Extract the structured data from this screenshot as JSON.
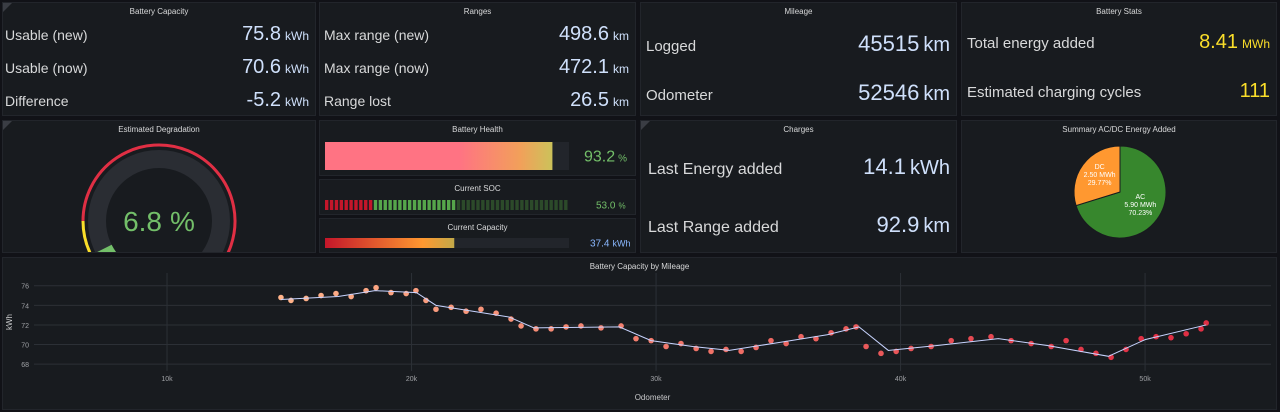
{
  "panels": {
    "battery_capacity": {
      "title": "Battery Capacity",
      "rows": [
        {
          "label": "Usable (new)",
          "value": 75.8,
          "unit": "kWh"
        },
        {
          "label": "Usable (now)",
          "value": 70.6,
          "unit": "kWh"
        },
        {
          "label": "Difference",
          "value": -5.2,
          "unit": "kWh"
        }
      ]
    },
    "ranges": {
      "title": "Ranges",
      "rows": [
        {
          "label": "Max range (new)",
          "value": 498.6,
          "unit": "km"
        },
        {
          "label": "Max range (now)",
          "value": 472.1,
          "unit": "km"
        },
        {
          "label": "Range lost",
          "value": 26.5,
          "unit": "km"
        }
      ]
    },
    "mileage": {
      "title": "Mileage",
      "rows": [
        {
          "label": "Logged",
          "value": 45515,
          "unit": "km"
        },
        {
          "label": "Odometer",
          "value": 52546,
          "unit": "km"
        }
      ]
    },
    "battery_stats": {
      "title": "Battery Stats",
      "rows": [
        {
          "label": "Total energy added",
          "value": 8.41,
          "unit": "MWh"
        },
        {
          "label": "Estimated charging cycles",
          "value": 111
        }
      ]
    },
    "degradation": {
      "title": "Estimated Degradation",
      "value": 6.8,
      "unit": "%",
      "range": [
        0,
        100
      ],
      "color": "#73bf69"
    },
    "battery_health": {
      "title": "Battery Health",
      "value": 93.2,
      "unit": "%",
      "range": [
        0,
        100
      ],
      "color": "#73bf69"
    },
    "current_soc": {
      "title": "Current SOC",
      "value": 53,
      "value_label": "53.0",
      "unit": "%",
      "range": [
        0,
        100
      ],
      "color": "#73bf69"
    },
    "current_capacity": {
      "title": "Current Capacity",
      "value": 37.4,
      "unit": "kWh",
      "range": [
        0,
        70.6
      ],
      "color": "#8ab8ff"
    },
    "charges": {
      "title": "Charges",
      "rows": [
        {
          "label": "Last Energy added",
          "value": 14.1,
          "unit": "kWh"
        },
        {
          "label": "Last Range added",
          "value": 92.9,
          "unit": "km"
        }
      ]
    }
  },
  "chart_data": [
    {
      "type": "pie",
      "title": "Summary AC/DC Energy Added",
      "categories": [
        "AC",
        "DC"
      ],
      "values": [
        70.23,
        29.77
      ],
      "value_labels": [
        "70.23%",
        "29.77%"
      ],
      "energy_labels": [
        "5.90 MWh",
        "2.50 MWh"
      ],
      "colors": [
        "#37872d",
        "#ff9830"
      ]
    },
    {
      "type": "scatter",
      "title": "Battery Capacity by Mileage",
      "xlabel": "Odometer",
      "ylabel": "kWh",
      "xlim": [
        4560,
        55150
      ],
      "ylim": [
        67.3,
        77.3
      ],
      "xticks": [
        {
          "value": 10000,
          "label": "10k"
        },
        {
          "value": 20000,
          "label": "20k"
        },
        {
          "value": 30000,
          "label": "30k"
        },
        {
          "value": 40000,
          "label": "40k"
        },
        {
          "value": 50000,
          "label": "50k"
        }
      ],
      "yticks": [
        68,
        70,
        72,
        74,
        76
      ],
      "grid": true,
      "series": [
        {
          "colors": [
            "#ffb38a",
            "#e02f44"
          ],
          "x": [
            14660,
            15070,
            15690,
            16300,
            16910,
            17530,
            18140,
            18550,
            19160,
            19780,
            20180,
            20590,
            21000,
            21620,
            22230,
            22840,
            23460,
            24070,
            24480,
            25090,
            25710,
            26320,
            26930,
            27750,
            28570,
            29180,
            29800,
            30410,
            31020,
            31640,
            32250,
            32860,
            33480,
            34090,
            34700,
            35320,
            35930,
            36540,
            37160,
            37770,
            38180,
            38590,
            39200,
            39820,
            40430,
            41250,
            42070,
            42880,
            43700,
            44520,
            45340,
            46160,
            46770,
            47380,
            47990,
            48610,
            49220,
            49840,
            50450,
            51060,
            51680,
            52290,
            52500
          ],
          "values": [
            74.8,
            74.5,
            74.7,
            75.0,
            75.2,
            74.9,
            75.5,
            75.8,
            75.3,
            75.2,
            75.5,
            74.5,
            73.6,
            73.8,
            73.4,
            73.6,
            73.2,
            72.6,
            71.9,
            71.6,
            71.6,
            71.8,
            71.9,
            71.7,
            71.9,
            70.6,
            70.4,
            69.8,
            70.1,
            69.6,
            69.3,
            69.5,
            69.3,
            69.7,
            70.4,
            70.1,
            70.8,
            70.6,
            71.2,
            71.6,
            71.8,
            69.8,
            69.1,
            69.3,
            69.6,
            69.8,
            70.4,
            70.6,
            70.8,
            70.4,
            70.1,
            69.8,
            70.4,
            69.5,
            69.1,
            68.7,
            69.5,
            70.6,
            70.8,
            70.7,
            71.1,
            71.6,
            72.2
          ]
        },
        {
          "color": "#c8d4ff",
          "x": [
            14660,
            17000,
            18500,
            20200,
            21000,
            24000,
            25000,
            28500,
            29800,
            31500,
            33000,
            35000,
            37000,
            38300,
            39500,
            41500,
            44000,
            46000,
            48500,
            50000,
            52500
          ],
          "values": [
            74.6,
            74.9,
            75.5,
            75.3,
            74.0,
            72.8,
            71.7,
            71.8,
            70.4,
            69.8,
            69.4,
            70.2,
            71.0,
            71.8,
            69.4,
            69.9,
            70.6,
            69.9,
            68.8,
            70.5,
            72.0
          ]
        }
      ]
    }
  ]
}
